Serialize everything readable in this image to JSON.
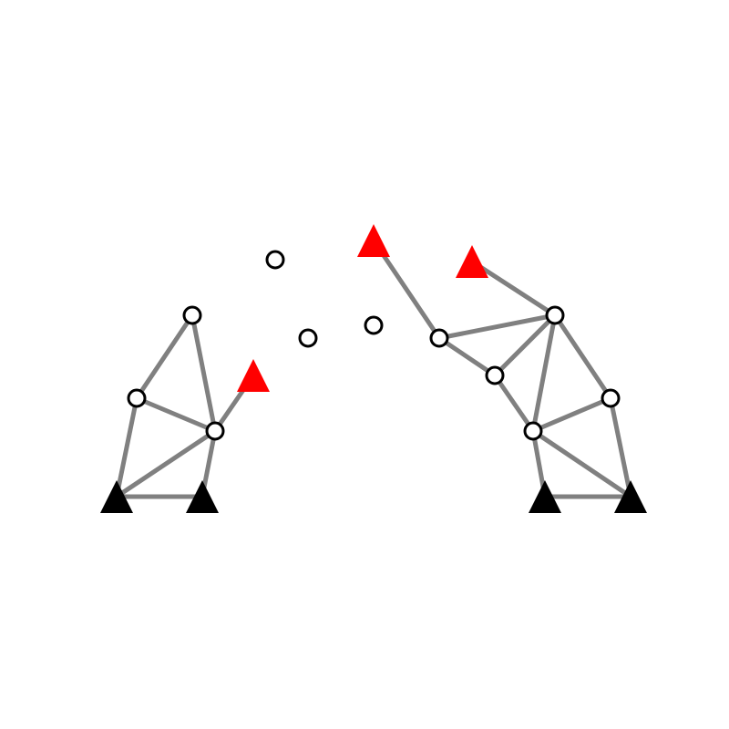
{
  "diagram": {
    "type": "truss-graph",
    "colors": {
      "edge": "#808080",
      "node_fill": "#ffffff",
      "node_stroke": "#000000",
      "support": "#000000",
      "load": "#ff0000"
    },
    "nodes": [
      {
        "id": "n1",
        "kind": "joint"
      },
      {
        "id": "n2",
        "kind": "joint"
      },
      {
        "id": "n3",
        "kind": "joint"
      },
      {
        "id": "n4",
        "kind": "joint"
      },
      {
        "id": "n5",
        "kind": "joint"
      },
      {
        "id": "n6",
        "kind": "joint"
      },
      {
        "id": "n7",
        "kind": "joint"
      },
      {
        "id": "n8",
        "kind": "joint"
      },
      {
        "id": "n9",
        "kind": "joint"
      },
      {
        "id": "n10",
        "kind": "joint"
      },
      {
        "id": "n11",
        "kind": "joint"
      },
      {
        "id": "s1",
        "kind": "fixed-support"
      },
      {
        "id": "s2",
        "kind": "fixed-support"
      },
      {
        "id": "s3",
        "kind": "fixed-support"
      },
      {
        "id": "s4",
        "kind": "fixed-support"
      },
      {
        "id": "r1",
        "kind": "load-point"
      },
      {
        "id": "r2",
        "kind": "load-point"
      },
      {
        "id": "r3",
        "kind": "load-point"
      }
    ],
    "edges": [
      [
        "n1",
        "n2"
      ],
      [
        "n1",
        "n3"
      ],
      [
        "n2",
        "n3"
      ],
      [
        "n2",
        "s1"
      ],
      [
        "n3",
        "s1"
      ],
      [
        "n3",
        "s2"
      ],
      [
        "n3",
        "r1"
      ],
      [
        "s1",
        "s2"
      ],
      [
        "r2",
        "n7"
      ],
      [
        "n7",
        "n8"
      ],
      [
        "n7",
        "n9"
      ],
      [
        "r3",
        "n9"
      ],
      [
        "n8",
        "n9"
      ],
      [
        "n8",
        "n11"
      ],
      [
        "n9",
        "n11"
      ],
      [
        "n9",
        "n10"
      ],
      [
        "n10",
        "n11"
      ],
      [
        "n10",
        "s4"
      ],
      [
        "n11",
        "s3"
      ],
      [
        "n11",
        "s4"
      ],
      [
        "s3",
        "s4"
      ]
    ]
  }
}
